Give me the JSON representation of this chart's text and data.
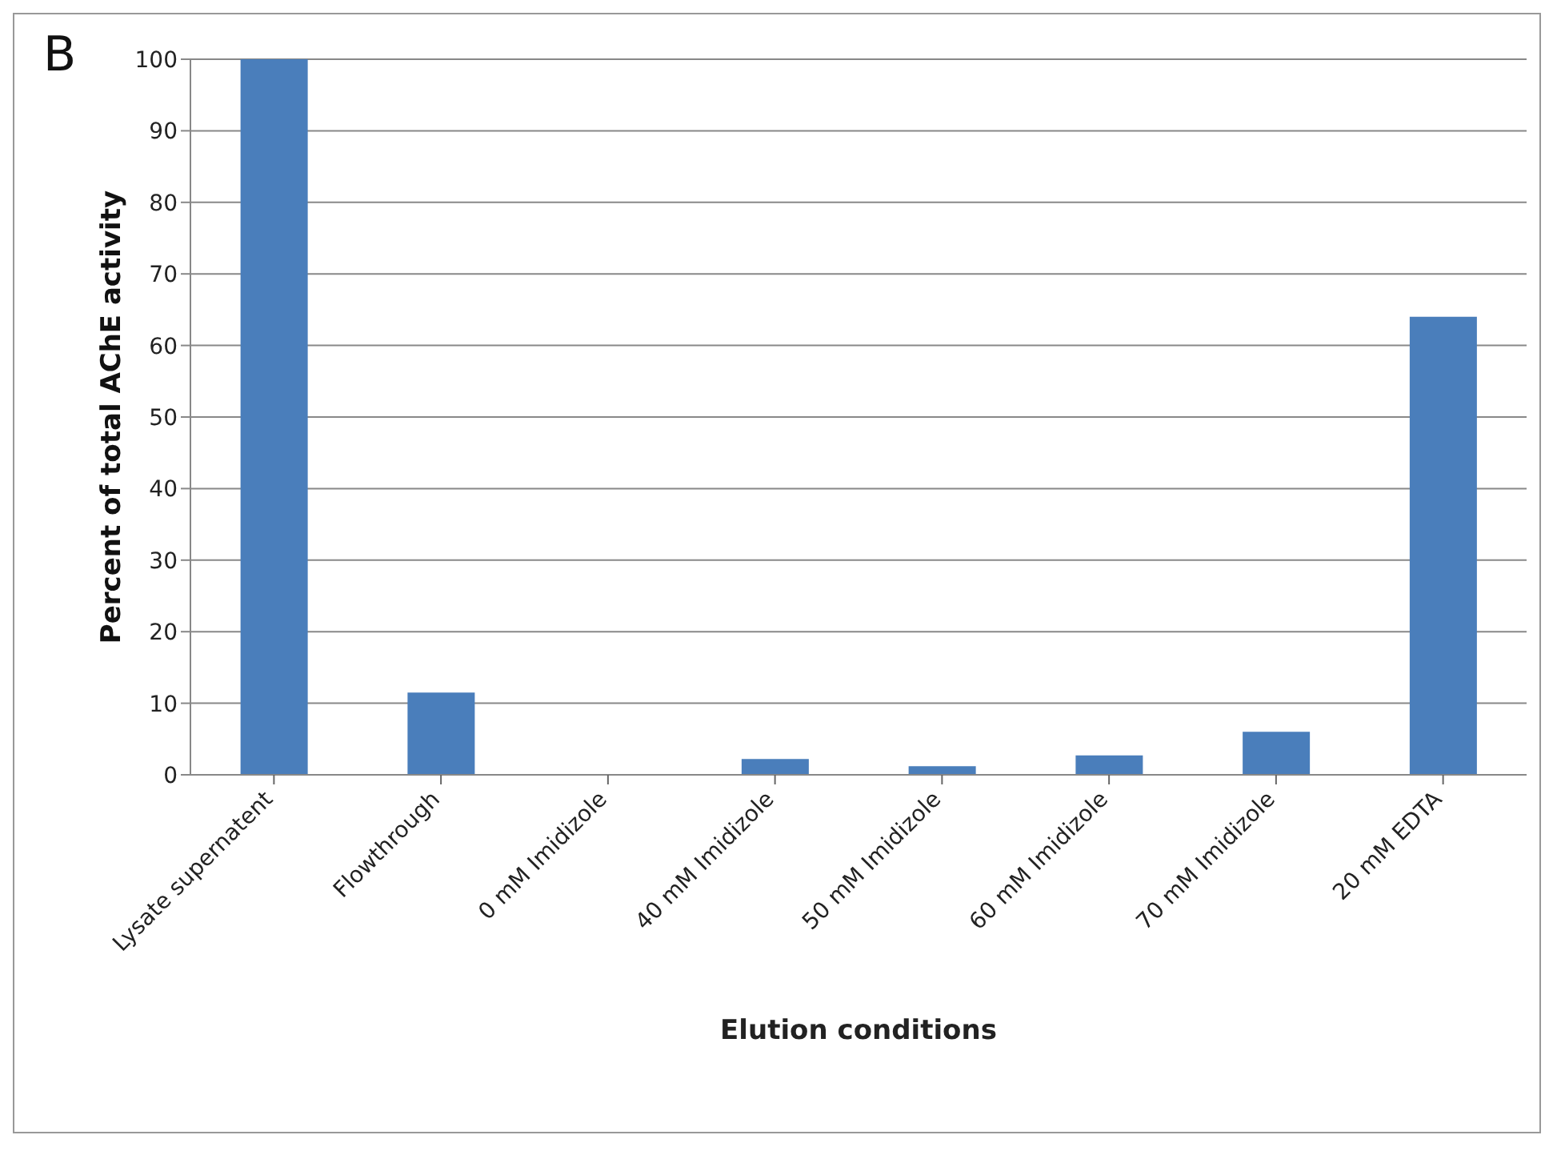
{
  "chart_data": {
    "type": "bar",
    "title": "B",
    "xlabel": "Elution conditions",
    "ylabel": "Percent of total AChE activity",
    "categories": [
      "Lysate supernatent",
      "Flowthrough",
      "0 mM Imidizole",
      "40 mM Imidizole",
      "50 mM Imidizole",
      "60 mM Imidizole",
      "70 mM Imidizole",
      "20 mM EDTA"
    ],
    "values": [
      100,
      11.5,
      0,
      2.2,
      1.2,
      2.7,
      6,
      64
    ],
    "color": "#4a7ebb",
    "ylim": [
      0,
      100
    ],
    "yticks": [
      0,
      10,
      20,
      30,
      40,
      50,
      60,
      70,
      80,
      90,
      100
    ],
    "grid": "y",
    "legend": false
  }
}
